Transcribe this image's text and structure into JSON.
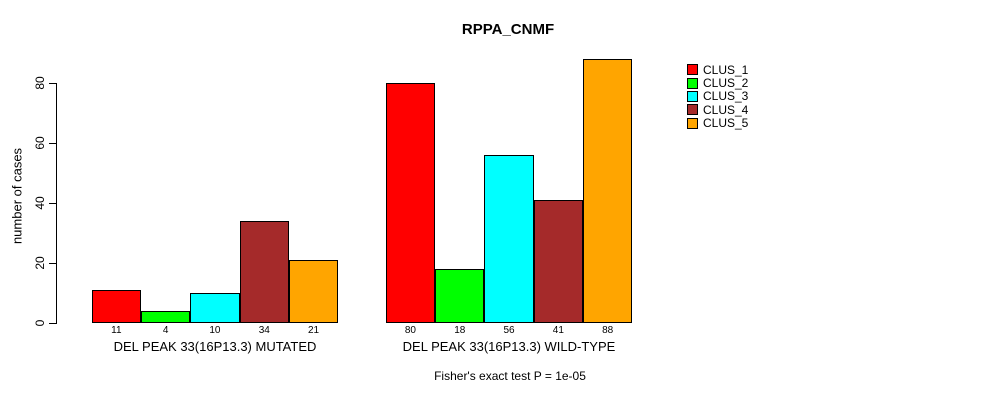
{
  "chart_data": {
    "type": "bar",
    "title": "RPPA_CNMF",
    "xlabel": "",
    "ylabel": "number of cases",
    "yticks": [
      0,
      20,
      40,
      60,
      80
    ],
    "ylim": [
      0,
      88
    ],
    "grid": false,
    "legend_position": "right",
    "series": [
      "CLUS_1",
      "CLUS_2",
      "CLUS_3",
      "CLUS_4",
      "CLUS_5"
    ],
    "series_colors": [
      "#FF0000",
      "#00FF00",
      "#00FFFF",
      "#A52A2A",
      "#FFA500"
    ],
    "groups": [
      {
        "key": "mutated",
        "label": "DEL PEAK 33(16P13.3) MUTATED",
        "values": [
          11,
          4,
          10,
          34,
          21
        ]
      },
      {
        "key": "wild-type",
        "label": "DEL PEAK 33(16P13.3) WILD-TYPE",
        "values": [
          80,
          18,
          56,
          41,
          88
        ]
      }
    ],
    "annotation": "Fisher's exact test P = 1e-05"
  },
  "colors": {
    "background": "#FFFFFF",
    "axis": "#000000",
    "text": "#000000"
  }
}
